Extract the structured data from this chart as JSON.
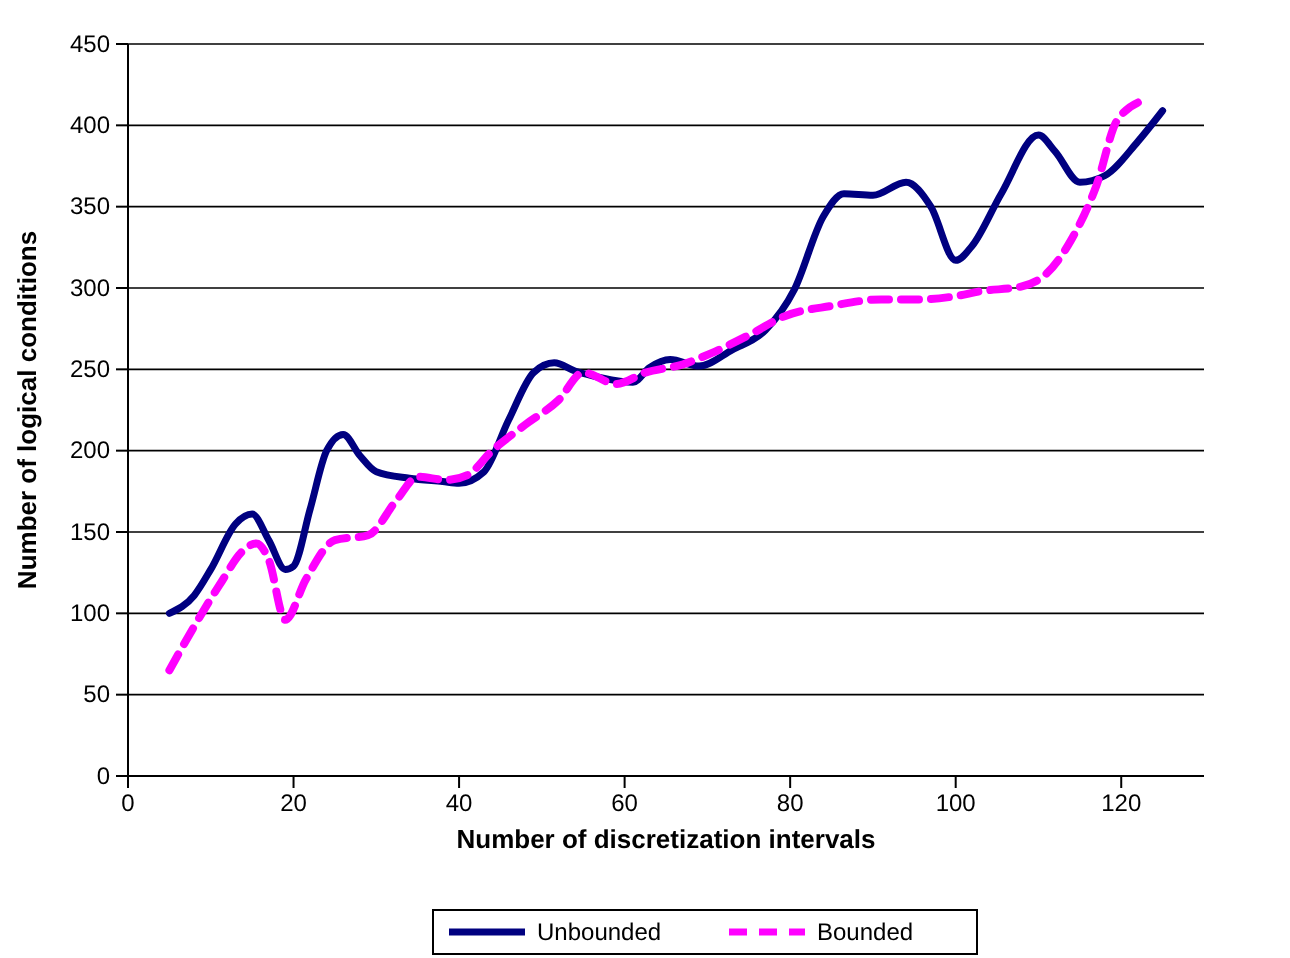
{
  "chart_data": {
    "type": "line",
    "xlabel": "Number of discretization intervals",
    "ylabel": "Number of logical conditions",
    "xlim": [
      0,
      130
    ],
    "xticks": [
      0,
      20,
      40,
      60,
      80,
      100,
      120
    ],
    "ylim": [
      0,
      450
    ],
    "yticks": [
      0,
      50,
      100,
      150,
      200,
      250,
      300,
      350,
      400,
      450
    ],
    "grid": "y",
    "legend": "bottom",
    "marker": "none",
    "series": [
      {
        "name": "Unbounded",
        "color": "#000080",
        "line_style": "solid",
        "x": [
          5,
          8,
          10,
          13,
          15,
          17,
          19,
          20,
          22,
          24,
          26,
          28,
          30,
          34,
          38,
          40,
          43,
          46,
          49,
          51.5,
          54,
          57,
          61,
          63,
          65.5,
          69,
          73,
          77,
          80.5,
          84,
          86.5,
          90,
          94,
          97,
          100,
          102,
          105.5,
          110,
          112,
          115,
          118,
          122,
          125
        ],
        "values": [
          100,
          111,
          127,
          155,
          161,
          145,
          127,
          129,
          164,
          200,
          210,
          197,
          187,
          183,
          181,
          180,
          187,
          219,
          248,
          254,
          249,
          245,
          242,
          251,
          256,
          252,
          262,
          274,
          299,
          344,
          358,
          357,
          365,
          350,
          317,
          326,
          358,
          394,
          384,
          365,
          369,
          390,
          409
        ]
      },
      {
        "name": "Bounded",
        "color": "#ff00ff",
        "line_style": "dashed",
        "x": [
          5,
          8,
          11,
          14,
          15.5,
          17,
          19,
          21.5,
          25,
          29,
          32.5,
          35,
          38.5,
          41,
          44,
          48,
          52,
          55,
          59,
          62.5,
          67,
          70.5,
          75,
          79.5,
          85,
          91,
          96,
          100,
          103,
          108,
          111,
          114,
          117,
          119.5,
          123
        ],
        "values": [
          65,
          92,
          117,
          139,
          143,
          133,
          96,
          121,
          145,
          148,
          170,
          184,
          182,
          185,
          200,
          216,
          231,
          248,
          241,
          248,
          253,
          260,
          271,
          283,
          289,
          293,
          293,
          295,
          298,
          301,
          309,
          330,
          363,
          403,
          416
        ]
      }
    ]
  }
}
